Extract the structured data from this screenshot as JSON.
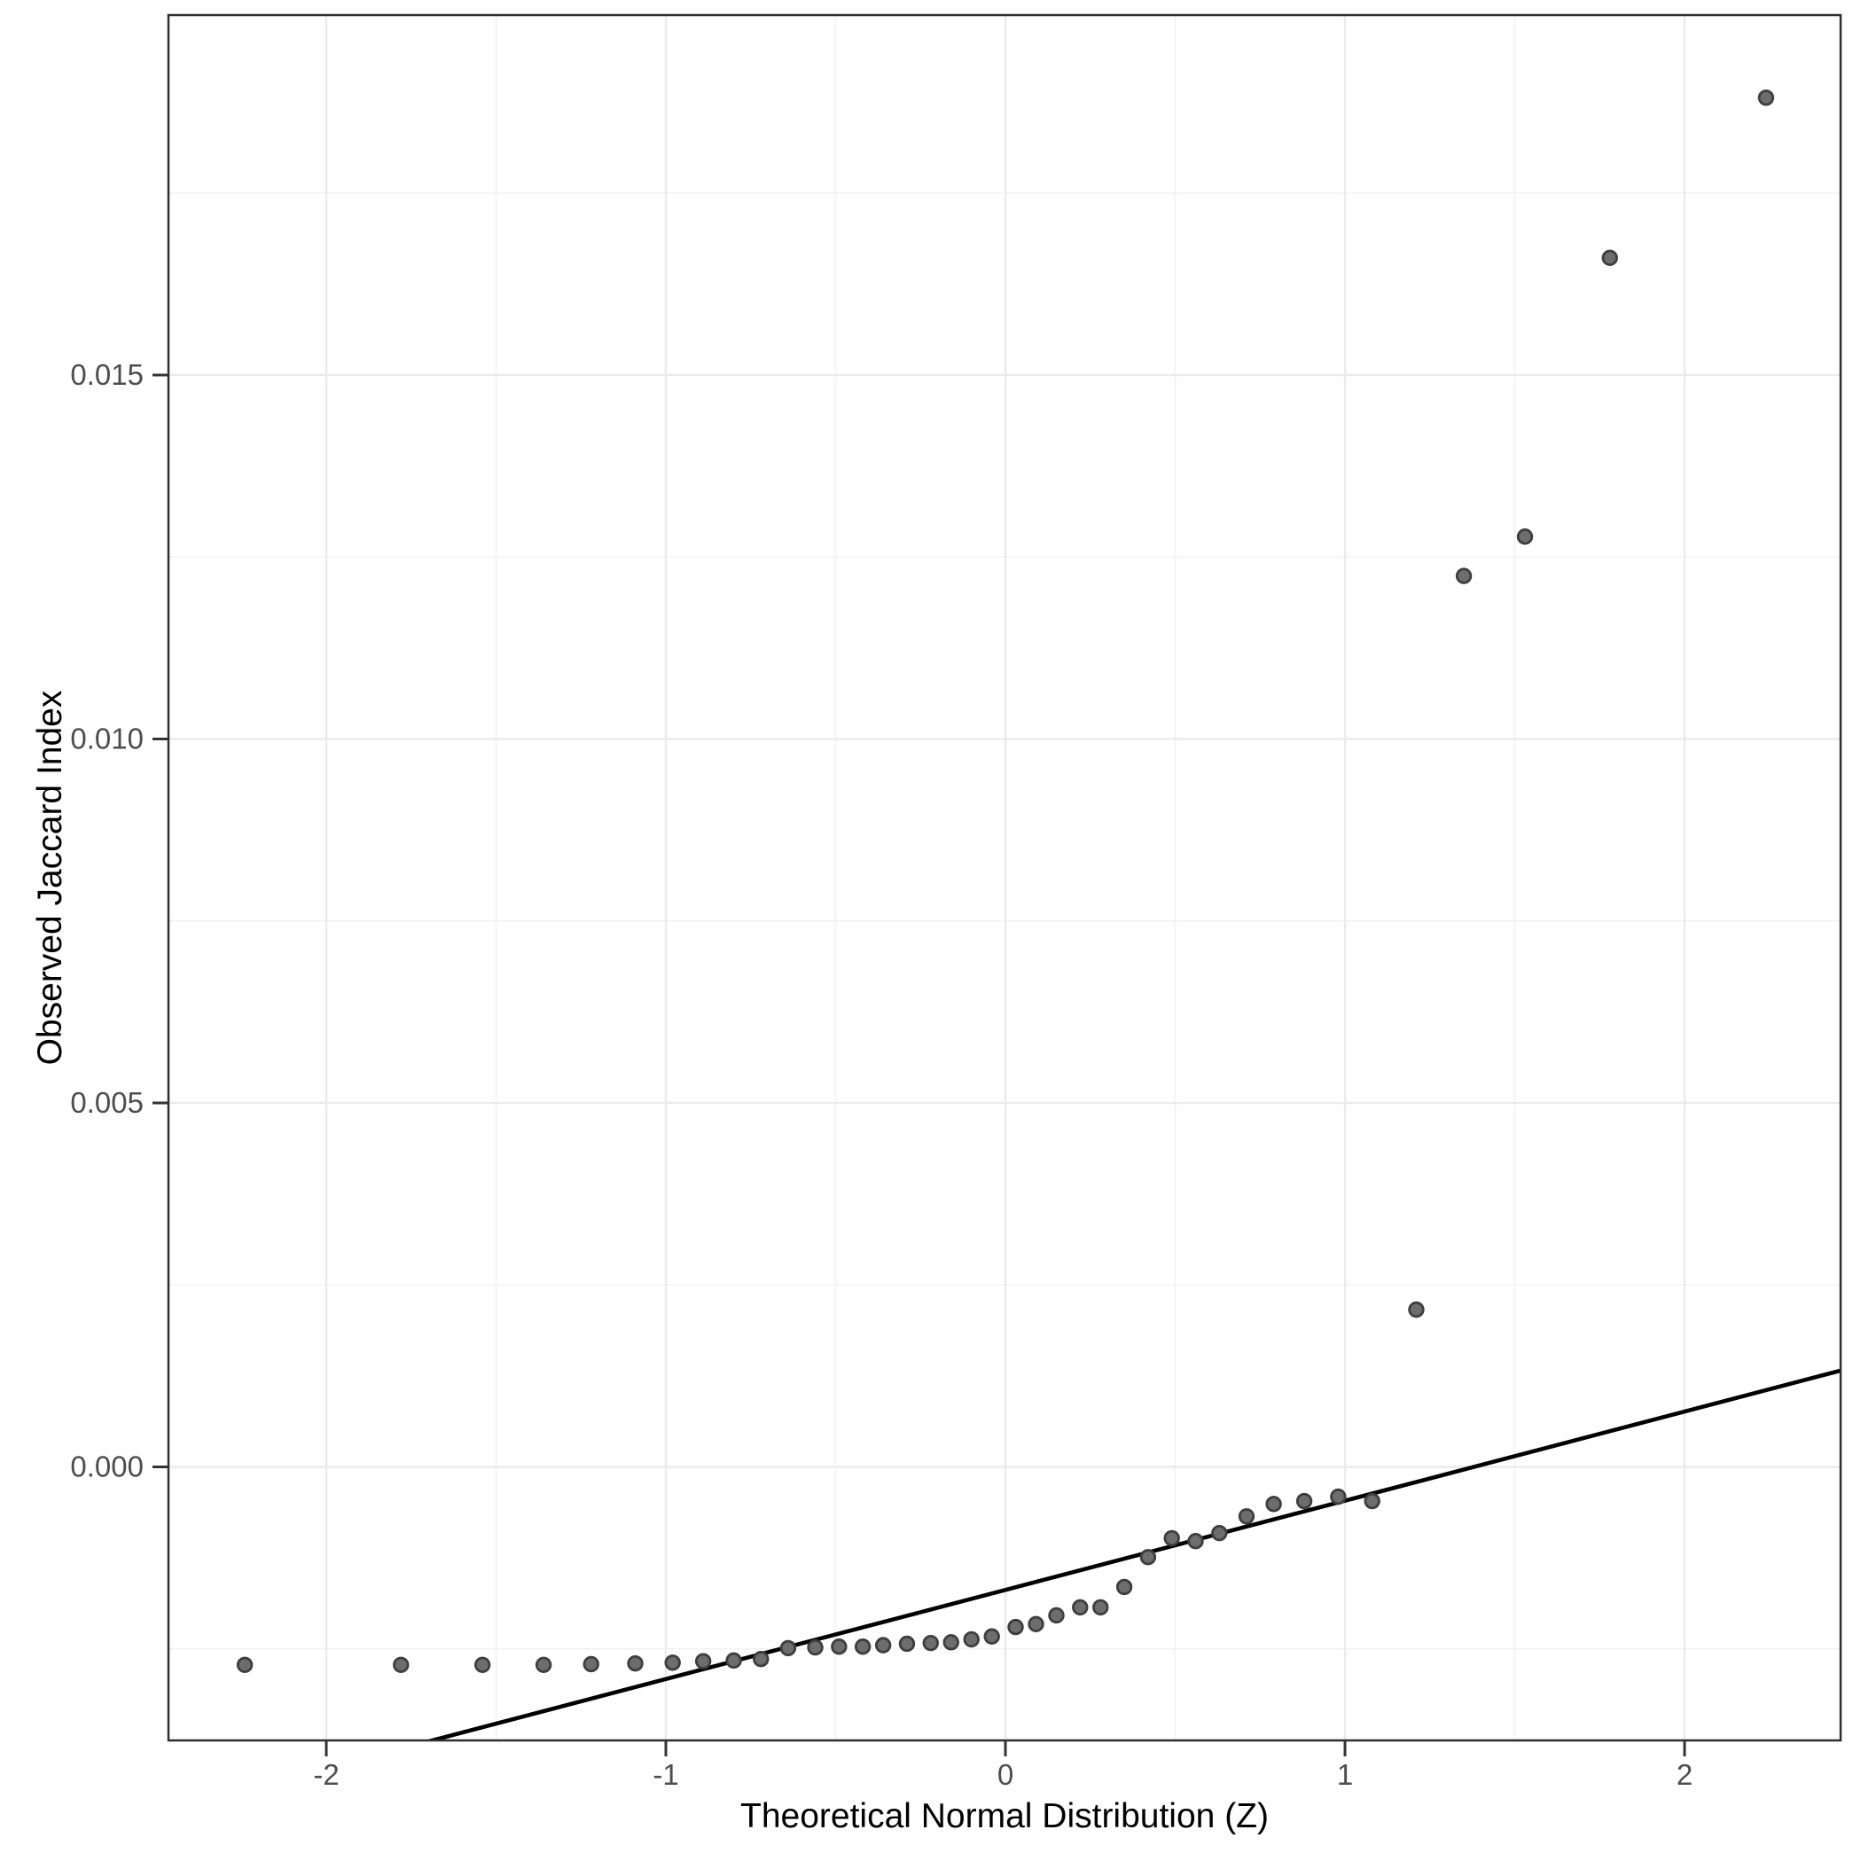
{
  "figure": {
    "kind": "ggplot-style QQ scatter plot",
    "background_color": "#ffffff"
  },
  "chart_data": {
    "type": "scatter",
    "title": "",
    "xlabel": "Theoretical Normal Distribution (Z)",
    "ylabel": "Observed Jaccard Index",
    "xlim": [
      -2.4648,
      2.4595
    ],
    "ylim": [
      -0.003758,
      0.019945
    ],
    "grid": "major and minor, light gray on white panel",
    "legend": "none",
    "x_ticks": {
      "values": [
        -2,
        -1,
        0,
        1,
        2
      ],
      "labels": [
        "-2",
        "-1",
        "0",
        "1",
        "2"
      ],
      "minor": [
        -1.5,
        -0.5,
        0.5,
        1.5
      ]
    },
    "y_ticks": {
      "values": [
        0,
        0.005,
        0.01,
        0.015
      ],
      "labels": [
        "0.000",
        "0.005",
        "0.010",
        "0.015"
      ],
      "minor": [
        -0.0025,
        0.0025,
        0.0075,
        0.0125,
        0.0175
      ]
    },
    "series": [
      {
        "name": "observed-vs-theoretical-quantiles",
        "type": "points",
        "x": [
          -2.24,
          -1.78,
          -1.54,
          -1.36,
          -1.22,
          -1.09,
          -0.98,
          -0.89,
          -0.8,
          -0.72,
          -0.64,
          -0.56,
          -0.49,
          -0.42,
          -0.36,
          -0.29,
          -0.22,
          -0.16,
          -0.1,
          -0.04,
          0.03,
          0.09,
          0.15,
          0.22,
          0.28,
          0.35,
          0.42,
          0.49,
          0.56,
          0.63,
          0.71,
          0.79,
          0.88,
          0.98,
          1.08,
          1.21,
          1.35,
          1.53,
          1.78,
          2.24
        ],
        "y": [
          -0.00272,
          -0.00272,
          -0.00272,
          -0.00272,
          -0.00271,
          -0.0027,
          -0.00269,
          -0.00267,
          -0.00266,
          -0.00264,
          -0.00249,
          -0.00248,
          -0.00247,
          -0.00247,
          -0.00245,
          -0.00243,
          -0.00242,
          -0.00241,
          -0.00237,
          -0.00233,
          -0.0022,
          -0.00216,
          -0.00204,
          -0.00193,
          -0.00193,
          -0.00165,
          -0.00124,
          -0.00098,
          -0.00102,
          -0.00091,
          -0.00068,
          -0.00051,
          -0.00047,
          -0.00041,
          -0.00047,
          0.00216,
          0.01224,
          0.01278,
          0.01661,
          0.01881
        ]
      },
      {
        "name": "qq-reference-line",
        "type": "line",
        "slope": 0.001225,
        "intercept": -0.00169
      }
    ],
    "style": {
      "point_fill": "#6d6d6d",
      "point_stroke": "#3e3e3e",
      "line_color": "#000000",
      "panel_border_color": "#2f2f2f",
      "grid_major_color": "#ebebeb",
      "grid_minor_color": "#f2f2f2",
      "tick_color": "#333333",
      "tick_label_color": "#4d4d4d",
      "axis_title_color": "#000000"
    }
  }
}
